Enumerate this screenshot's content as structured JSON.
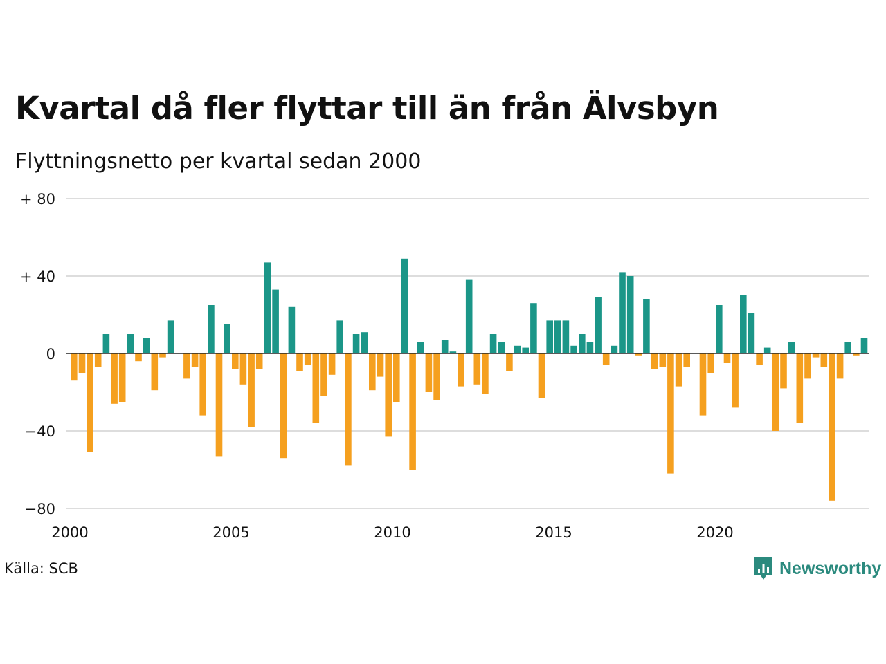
{
  "title": "Kvartal då fler flyttar till än från Älvsbyn",
  "subtitle": "Flyttningsnetto per kvartal sedan 2000",
  "source": "Källa: SCB",
  "logo_text": "Newsworthy",
  "colors": {
    "positive": "#1b9688",
    "negative": "#f5a01f",
    "grid": "#dddddd",
    "zero_line": "#222222",
    "logo": "#2b8a7e"
  },
  "chart_data": {
    "type": "bar",
    "ylim": [
      -80,
      80
    ],
    "xlim": [
      2000.0,
      2025.0
    ],
    "y_ticks": [
      {
        "value": 80,
        "label": "+ 80"
      },
      {
        "value": 40,
        "label": "+ 40"
      },
      {
        "value": 0,
        "label": "0"
      },
      {
        "value": -40,
        "label": "−40"
      },
      {
        "value": -80,
        "label": "−80"
      }
    ],
    "x_ticks": [
      {
        "value": 2000,
        "label": "2000"
      },
      {
        "value": 2005,
        "label": "2005"
      },
      {
        "value": 2010,
        "label": "2010"
      },
      {
        "value": 2015,
        "label": "2015"
      },
      {
        "value": 2020,
        "label": "2020"
      }
    ],
    "grid": true,
    "start_year": 2000,
    "start_quarter": 1,
    "values": [
      -14,
      -10,
      -51,
      -7,
      10,
      -26,
      -25,
      10,
      -4,
      8,
      -19,
      -2,
      17,
      0,
      -13,
      -7,
      -32,
      25,
      -53,
      15,
      -8,
      -16,
      -38,
      -8,
      47,
      33,
      -54,
      24,
      -9,
      -6,
      -36,
      -22,
      -11,
      17,
      -58,
      10,
      11,
      -19,
      -12,
      -43,
      -25,
      49,
      -60,
      6,
      -20,
      -24,
      7,
      1,
      -17,
      38,
      -16,
      -21,
      10,
      6,
      -9,
      4,
      3,
      26,
      -23,
      17,
      17,
      17,
      4,
      10,
      6,
      29,
      -6,
      4,
      42,
      40,
      -1,
      28,
      -8,
      -7,
      -62,
      -17,
      -7,
      0,
      -32,
      -10,
      25,
      -5,
      -28,
      30,
      21,
      -6,
      3,
      -40,
      -18,
      6,
      -36,
      -13,
      -2,
      -7,
      -76,
      -13,
      6,
      -1,
      8
    ]
  }
}
